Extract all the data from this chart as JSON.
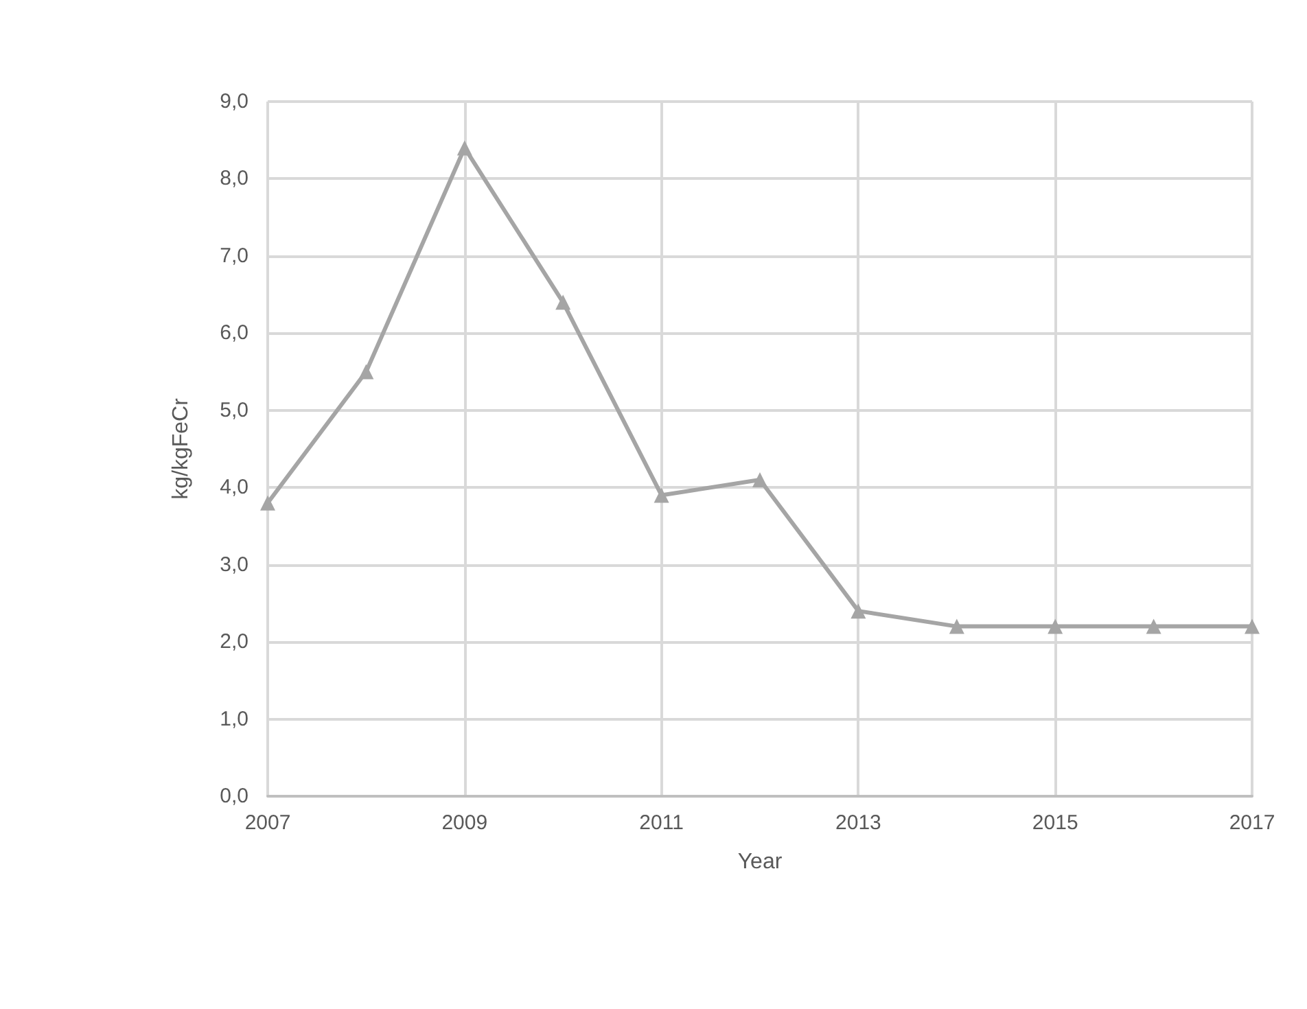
{
  "chart_data": {
    "type": "line",
    "xlabel": "Year",
    "ylabel": "kg/kgFeCr",
    "x": [
      2007,
      2008,
      2009,
      2010,
      2011,
      2012,
      2013,
      2014,
      2015,
      2016,
      2017
    ],
    "series": [
      {
        "color": "#a5a5a5",
        "values": [
          3.8,
          5.5,
          8.4,
          6.4,
          3.9,
          4.1,
          2.4,
          2.2,
          2.2,
          2.2,
          2.2
        ]
      }
    ],
    "xlim": [
      2007,
      2017
    ],
    "xticks": [
      2007,
      2009,
      2011,
      2013,
      2015,
      2017
    ],
    "ylim": [
      0,
      9
    ],
    "yticks": [
      {
        "value": 0,
        "label": "0,0"
      },
      {
        "value": 1,
        "label": "1,0"
      },
      {
        "value": 2,
        "label": "2,0"
      },
      {
        "value": 3,
        "label": "3,0"
      },
      {
        "value": 4,
        "label": "4,0"
      },
      {
        "value": 5,
        "label": "5,0"
      },
      {
        "value": 6,
        "label": "6,0"
      },
      {
        "value": 7,
        "label": "7,0"
      },
      {
        "value": 8,
        "label": "8,0"
      },
      {
        "value": 9,
        "label": "9,0"
      }
    ],
    "grid": true,
    "marker": "triangle",
    "line_style": "solid"
  }
}
